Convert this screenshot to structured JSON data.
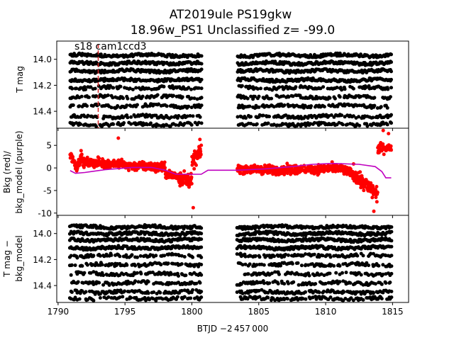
{
  "chart_data": {
    "type": "scatter",
    "title_line1": "AT2019ule  PS19gkw",
    "title_line2": "18.96w_PS1 Unclassified z= -99.0",
    "xlabel": "BTJD −2 457 000",
    "xlim": [
      1789.9,
      1816.2
    ],
    "xticks": [
      1790,
      1795,
      1800,
      1805,
      1810,
      1815
    ],
    "gap": [
      1800.7,
      1803.4
    ],
    "segments": [
      [
        1790.9,
        1800.7
      ],
      [
        1803.4,
        1814.9
      ]
    ],
    "panels": [
      {
        "id": "top",
        "ylabel": "T mag",
        "ylim": [
          14.53,
          13.86
        ],
        "yticks": [
          14.0,
          14.2,
          14.4
        ],
        "annotation": "s18 cam1ccd3",
        "marker_line_x": 1793.0,
        "marker_line_color": "#d62728",
        "series": [
          {
            "name": "T mag",
            "color": "#000000",
            "mag_levels": [
              13.97,
              14.03,
              14.09,
              14.16,
              14.22,
              14.29,
              14.36,
              14.44,
              14.5
            ]
          }
        ]
      },
      {
        "id": "mid",
        "ylabel_line1": "Bkg (red)/",
        "ylabel_line2": "bkg_model (purple)",
        "ylim": [
          -10.5,
          8.8
        ],
        "yticks": [
          5,
          0,
          -5,
          -10
        ],
        "series": [
          {
            "name": "Bkg",
            "color": "#ff0000",
            "outlier_points": [
              [
                1794.5,
                6.6
              ],
              [
                1800.6,
                6.3
              ],
              [
                1800.1,
                -8.8
              ],
              [
                1813.6,
                -9.6
              ],
              [
                1814.3,
                8.3
              ],
              [
                1814.7,
                7.6
              ]
            ]
          },
          {
            "name": "bkg_model",
            "color": "#bf00bf",
            "points": [
              [
                1790.9,
                -0.6
              ],
              [
                1791.3,
                -1.2
              ],
              [
                1792.0,
                -1.0
              ],
              [
                1793.5,
                -0.4
              ],
              [
                1795.5,
                0.1
              ],
              [
                1797.0,
                0.1
              ],
              [
                1798.0,
                -0.5
              ],
              [
                1798.8,
                -1.4
              ],
              [
                1800.7,
                -1.4
              ],
              [
                1801.2,
                -0.5
              ],
              [
                1803.4,
                -0.5
              ],
              [
                1805.5,
                -0.2
              ],
              [
                1807.5,
                0.3
              ],
              [
                1809.0,
                0.8
              ],
              [
                1810.5,
                1.0
              ],
              [
                1812.5,
                0.8
              ],
              [
                1813.7,
                0.3
              ],
              [
                1814.2,
                -0.8
              ],
              [
                1814.5,
                -2.2
              ],
              [
                1814.9,
                -2.2
              ]
            ]
          }
        ]
      },
      {
        "id": "bot",
        "ylabel_line1": "T mag −",
        "ylabel_line2": "bkg_model",
        "ylim": [
          14.53,
          13.86
        ],
        "yticks": [
          14.0,
          14.2,
          14.4
        ],
        "series": [
          {
            "name": "T mag − bkg_model",
            "color": "#000000",
            "mag_levels": [
              13.95,
              14.0,
              14.05,
              14.11,
              14.17,
              14.24,
              14.31,
              14.38,
              14.45,
              14.5
            ]
          }
        ]
      }
    ]
  }
}
